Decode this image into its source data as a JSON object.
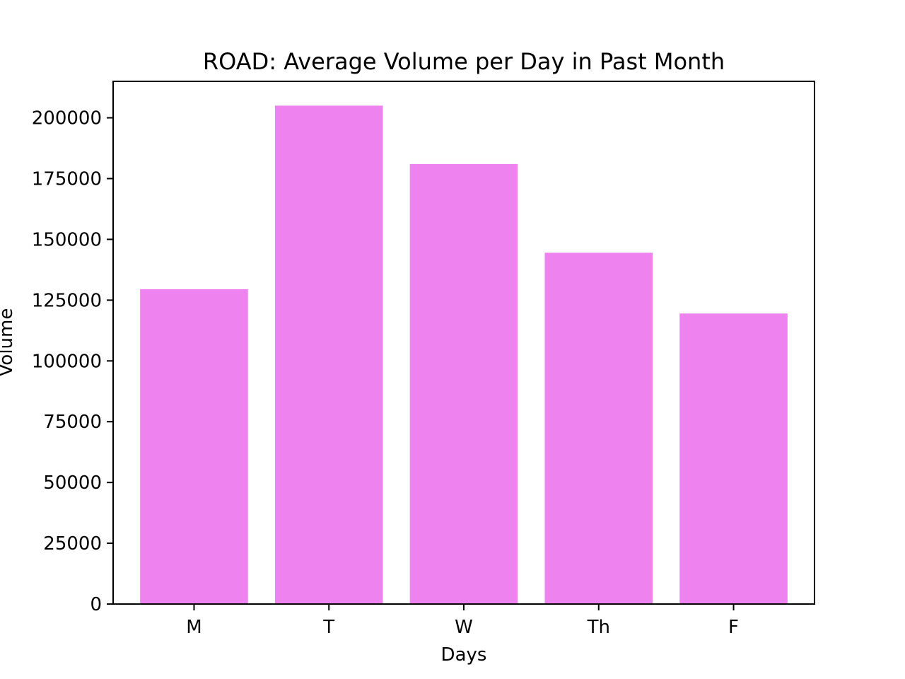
{
  "chart_data": {
    "type": "bar",
    "title": "ROAD: Average Volume per Day in Past Month",
    "xlabel": "Days",
    "ylabel": "Volume",
    "categories": [
      "M",
      "T",
      "W",
      "Th",
      "F"
    ],
    "values": [
      129500,
      205000,
      181000,
      144500,
      119500
    ],
    "ylim": [
      0,
      215000
    ],
    "yticks": [
      0,
      25000,
      50000,
      75000,
      100000,
      125000,
      150000,
      175000,
      200000
    ],
    "ytick_labels": [
      "0",
      "25000",
      "50000",
      "75000",
      "100000",
      "125000",
      "150000",
      "175000",
      "200000"
    ],
    "bar_color": "#ee82ee",
    "grid": false
  }
}
